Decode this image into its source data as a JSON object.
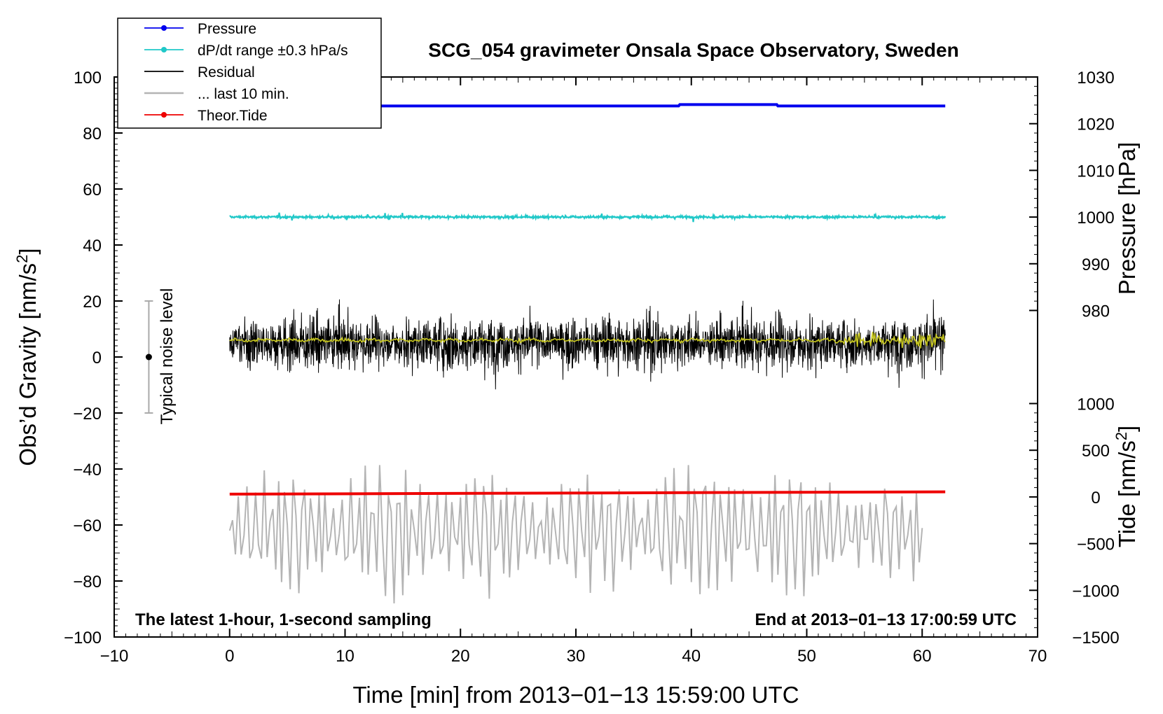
{
  "chart_data": {
    "type": "line",
    "title": "SCG_054 gravimeter Onsala Space Observatory, Sweden",
    "xlabel": "Time [min] from 2013−01−13 15:59:00 UTC",
    "ylabel_left": "Obs’d Gravity [nm/s",
    "ylabel_left_sup": "2",
    "ylabel_left_end": "]",
    "ylabel_right_pressure": "Pressure [hPa]",
    "ylabel_right_tide": "Tide [nm/s",
    "ylabel_right_tide_sup": "2",
    "ylabel_right_tide_end": "]",
    "xlim": [
      -10,
      70
    ],
    "ylim_left": [
      -100,
      100
    ],
    "pressure_axis_range": [
      975,
      1030
    ],
    "tide_axis_range": [
      -1500,
      1000
    ],
    "x_ticks": [
      "−10",
      "0",
      "10",
      "20",
      "30",
      "40",
      "50",
      "60",
      "70"
    ],
    "y_left_ticks": [
      "100",
      "80",
      "60",
      "40",
      "20",
      "0",
      "−20",
      "−40",
      "−60",
      "−80",
      "−100"
    ],
    "pressure_ticks": [
      "1030",
      "1020",
      "1010",
      "1000",
      "990",
      "980"
    ],
    "tide_ticks": [
      "1000",
      "500",
      "0",
      "−500",
      "−1000",
      "−1500"
    ],
    "grid": false,
    "legend_position": "top-left",
    "annotation_left": "The latest 1-hour, 1-second sampling",
    "annotation_right": "End at 2013−01−13 17:00:59 UTC",
    "noise_label": "Typical noise level",
    "noise_marker": {
      "x": -7,
      "center": 0,
      "low": -20,
      "high": 20
    },
    "colors": {
      "pressure": "#0000ee",
      "dpdt": "#20c8c8",
      "residual": "#000000",
      "last10": "#b4b4b4",
      "tide": "#ee0000",
      "smoothed": "#c8c820"
    },
    "series": [
      {
        "name": "Pressure",
        "axis": "pressure",
        "x": [
          0,
          38.9,
          39.0,
          47.4,
          47.5,
          62
        ],
        "values": [
          1023.8,
          1023.8,
          1024.1,
          1024.1,
          1023.8,
          1023.8
        ]
      },
      {
        "name": "dP/dt range ±0.3 hPa/s",
        "axis": "left",
        "x": [
          0,
          62
        ],
        "values": [
          50,
          50
        ]
      },
      {
        "name": "Residual",
        "axis": "left",
        "x_range": [
          0,
          62
        ],
        "mean": 5,
        "min": -20,
        "max": 31
      },
      {
        "name": "... last 10 min.",
        "axis": "left",
        "x_range": [
          0,
          60
        ],
        "min": -88,
        "max": -37
      },
      {
        "name": "Theor.Tide",
        "axis": "tide",
        "x": [
          0,
          62
        ],
        "values": [
          30,
          55
        ]
      }
    ],
    "legend": [
      {
        "label": "Pressure",
        "style": "line-dot",
        "color_key": "pressure"
      },
      {
        "label": "dP/dt range ±0.3 hPa/s",
        "style": "line-dot",
        "color_key": "dpdt"
      },
      {
        "label": "Residual",
        "style": "line",
        "color_key": "residual"
      },
      {
        "label": "... last 10 min.",
        "style": "line",
        "color_key": "last10"
      },
      {
        "label": "Theor.Tide",
        "style": "line-dot",
        "color_key": "tide"
      }
    ]
  }
}
